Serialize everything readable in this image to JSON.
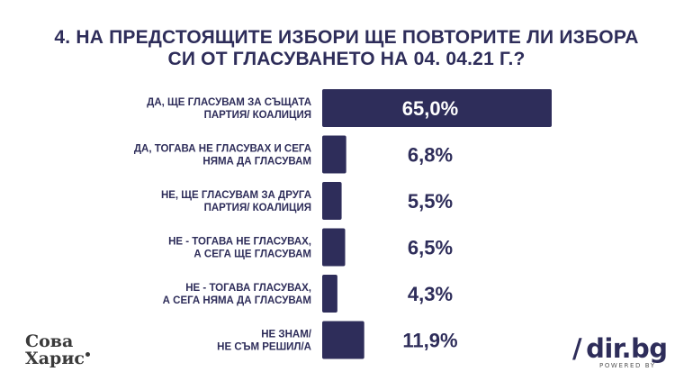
{
  "title_line1": "4. НА ПРЕДСТОЯЩИТЕ ИЗБОРИ ЩЕ ПОВТОРИТЕ ЛИ ИЗБОРА",
  "title_line2": "СИ ОТ ГЛАСУВАНЕТО НА 04. 04.21 Г.?",
  "chart_data": {
    "type": "bar",
    "orientation": "horizontal",
    "categories": [
      [
        "ДА, ЩЕ ГЛАСУВАМ ЗА СЪЩАТА",
        "ПАРТИЯ/ КОАЛИЦИЯ"
      ],
      [
        "ДА, ТОГАВА НЕ ГЛАСУВАХ И СЕГА",
        "НЯМА ДА ГЛАСУВАМ"
      ],
      [
        "НЕ, ЩЕ ГЛАСУВАМ ЗА ДРУГА",
        "ПАРТИЯ/ КОАЛИЦИЯ"
      ],
      [
        "НЕ - ТОГАВА НЕ ГЛАСУВАХ,",
        "А СЕГА ЩЕ ГЛАСУВАМ"
      ],
      [
        "НЕ - ТОГАВА ГЛАСУВАХ,",
        "А СЕГА НЯМА ДА ГЛАСУВАМ"
      ],
      [
        "НЕ ЗНАМ/",
        "НЕ СЪМ РЕШИЛ/А"
      ]
    ],
    "values": [
      65.0,
      6.8,
      5.5,
      6.5,
      4.3,
      11.9
    ],
    "value_labels": [
      "65,0%",
      "6,8%",
      "5,5%",
      "6,5%",
      "4,3%",
      "11,9%"
    ],
    "unit": "%",
    "bar_color": "#2e2d5a",
    "label_color": "#2e2d5a",
    "inside_label_color": "#ffffff",
    "xlim": [
      0,
      65
    ]
  },
  "logo_left": {
    "line1": "Сова",
    "line2": "Харис"
  },
  "logo_right": {
    "slash": "/",
    "name": "dir.bg",
    "sub": "POWERED BY"
  }
}
